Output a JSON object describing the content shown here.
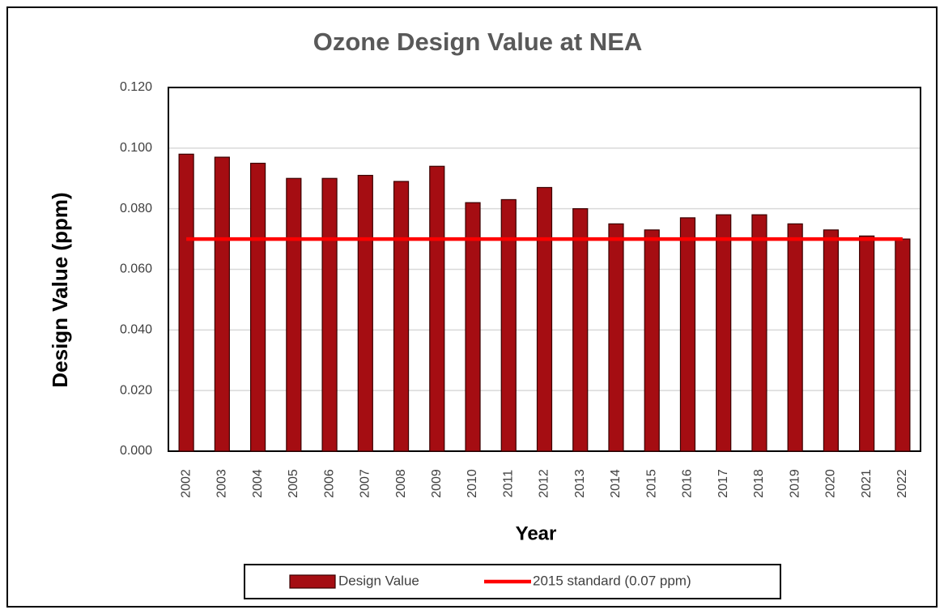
{
  "chart_data": {
    "type": "bar",
    "title": "Ozone Design Value at NEA",
    "x_label": "Year",
    "y_label": "Design Value (ppm)",
    "categories": [
      "2002",
      "2003",
      "2004",
      "2005",
      "2006",
      "2007",
      "2008",
      "2009",
      "2010",
      "2011",
      "2012",
      "2013",
      "2014",
      "2015",
      "2016",
      "2017",
      "2018",
      "2019",
      "2020",
      "2021",
      "2022"
    ],
    "series": [
      {
        "name": "Design Value",
        "type": "bar",
        "color": "#a50d12",
        "values": [
          0.098,
          0.097,
          0.095,
          0.09,
          0.09,
          0.091,
          0.089,
          0.094,
          0.082,
          0.083,
          0.087,
          0.08,
          0.075,
          0.073,
          0.077,
          0.078,
          0.078,
          0.075,
          0.073,
          0.071,
          0.07
        ]
      },
      {
        "name": "2015 standard (0.07 ppm)",
        "type": "line",
        "color": "#ff0000",
        "values": [
          0.07,
          0.07,
          0.07,
          0.07,
          0.07,
          0.07,
          0.07,
          0.07,
          0.07,
          0.07,
          0.07,
          0.07,
          0.07,
          0.07,
          0.07,
          0.07,
          0.07,
          0.07,
          0.07,
          0.07,
          0.07
        ]
      }
    ],
    "ylim": [
      0,
      0.12
    ],
    "yticks": [
      {
        "value": 0,
        "label": "0.000"
      },
      {
        "value": 0.02,
        "label": "0.020"
      },
      {
        "value": 0.04,
        "label": "0.040"
      },
      {
        "value": 0.06,
        "label": "0.060"
      },
      {
        "value": 0.08,
        "label": "0.080"
      },
      {
        "value": 0.1,
        "label": "0.100"
      },
      {
        "value": 0.12,
        "label": "0.120"
      }
    ],
    "grid": true,
    "legend": "bottom"
  }
}
